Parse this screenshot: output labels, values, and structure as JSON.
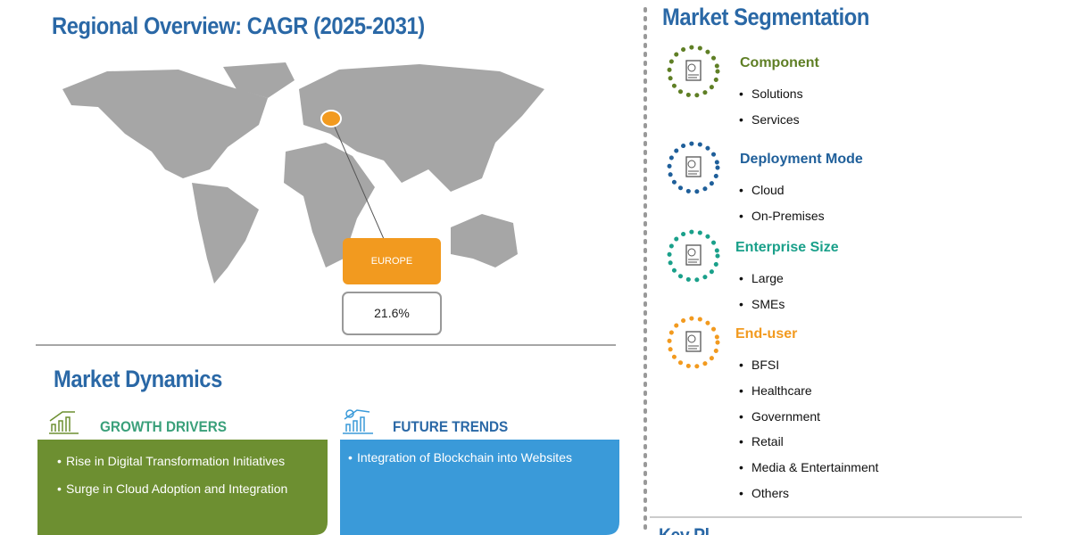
{
  "regional_overview": {
    "title": "Regional Overview: CAGR (2025-2031)",
    "region": "EUROPE",
    "cagr": "21.6%"
  },
  "market_dynamics": {
    "title": "Market Dynamics",
    "growth_drivers": {
      "title": "GROWTH DRIVERS",
      "items": [
        "Rise in Digital Transformation Initiatives",
        "Surge in Cloud Adoption and Integration"
      ]
    },
    "future_trends": {
      "title": "FUTURE TRENDS",
      "items": [
        "Integration of Blockchain into Websites"
      ]
    }
  },
  "market_segmentation": {
    "title": "Market Segmentation",
    "segments": [
      {
        "name": "Component",
        "color": "#5f7f25",
        "items": [
          "Solutions",
          "Services"
        ]
      },
      {
        "name": "Deployment Mode",
        "color": "#1f5f9a",
        "items": [
          "Cloud",
          "On-Premises"
        ]
      },
      {
        "name": "Enterprise Size",
        "color": "#1aa08a",
        "items": [
          "Large",
          "SMEs"
        ]
      },
      {
        "name": "End-user",
        "color": "#f29a1f",
        "items": [
          "BFSI",
          "Healthcare",
          "Government",
          "Retail",
          "Media & Entertainment",
          "Others"
        ]
      }
    ]
  },
  "key_players": {
    "title": "Key Pl"
  }
}
